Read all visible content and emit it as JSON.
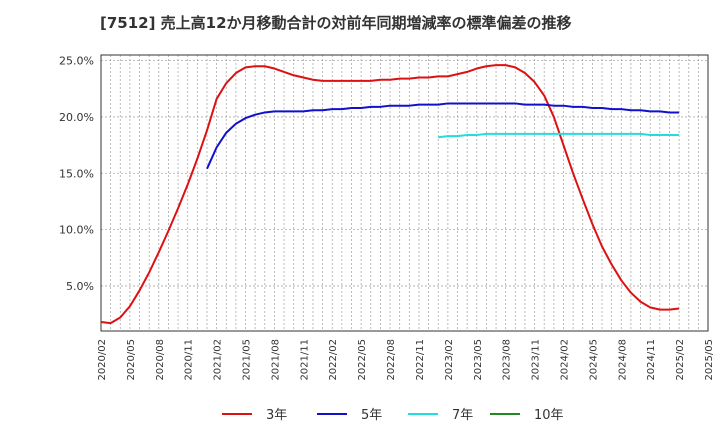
{
  "chart_data": {
    "type": "line",
    "title": "[7512]  売上高12か月移動合計の対前年同期増減率の標準偏差の推移",
    "xlabel": "",
    "ylabel": "",
    "ylim": [
      1.0,
      25.5
    ],
    "x_ticks": [
      "2020/02",
      "2020/05",
      "2020/08",
      "2020/11",
      "2021/02",
      "2021/05",
      "2021/08",
      "2021/11",
      "2022/02",
      "2022/05",
      "2022/08",
      "2022/11",
      "2023/02",
      "2023/05",
      "2023/08",
      "2023/11",
      "2024/02",
      "2024/05",
      "2024/08",
      "2024/11",
      "2025/02",
      "2025/05"
    ],
    "y_ticks": [
      5.0,
      10.0,
      15.0,
      20.0,
      25.0
    ],
    "y_tick_labels": [
      "5.0%",
      "10.0%",
      "15.0%",
      "20.0%",
      "25.0%"
    ],
    "grid": true,
    "legend_position": "bottom",
    "series": [
      {
        "name": "3年",
        "color": "#dd1111",
        "x": [
          "2020/02",
          "2020/03",
          "2020/04",
          "2020/05",
          "2020/06",
          "2020/07",
          "2020/08",
          "2020/09",
          "2020/10",
          "2020/11",
          "2020/12",
          "2021/01",
          "2021/02",
          "2021/03",
          "2021/04",
          "2021/05",
          "2021/06",
          "2021/07",
          "2021/08",
          "2021/09",
          "2021/10",
          "2021/11",
          "2021/12",
          "2022/01",
          "2022/02",
          "2022/03",
          "2022/04",
          "2022/05",
          "2022/06",
          "2022/07",
          "2022/08",
          "2022/09",
          "2022/10",
          "2022/11",
          "2022/12",
          "2023/01",
          "2023/02",
          "2023/03",
          "2023/04",
          "2023/05",
          "2023/06",
          "2023/07",
          "2023/08",
          "2023/09",
          "2023/10",
          "2023/11",
          "2023/12",
          "2024/01",
          "2024/02",
          "2024/03",
          "2024/04",
          "2024/05",
          "2024/06",
          "2024/07",
          "2024/08",
          "2024/09",
          "2024/10",
          "2024/11",
          "2024/12",
          "2025/01",
          "2025/02"
        ],
        "values": [
          1.8,
          1.7,
          2.2,
          3.2,
          4.6,
          6.2,
          8.0,
          9.9,
          11.9,
          14.0,
          16.3,
          18.8,
          21.6,
          23.0,
          23.9,
          24.4,
          24.5,
          24.5,
          24.3,
          24.0,
          23.7,
          23.5,
          23.3,
          23.2,
          23.2,
          23.2,
          23.2,
          23.2,
          23.2,
          23.3,
          23.3,
          23.4,
          23.4,
          23.5,
          23.5,
          23.6,
          23.6,
          23.8,
          24.0,
          24.3,
          24.5,
          24.6,
          24.6,
          24.4,
          23.9,
          23.1,
          21.9,
          20.0,
          17.5,
          15.0,
          12.7,
          10.5,
          8.5,
          6.9,
          5.5,
          4.4,
          3.6,
          3.1,
          2.9,
          2.9,
          3.0
        ]
      },
      {
        "name": "5年",
        "color": "#1111cc",
        "x": [
          "2021/01",
          "2021/02",
          "2021/03",
          "2021/04",
          "2021/05",
          "2021/06",
          "2021/07",
          "2021/08",
          "2021/09",
          "2021/10",
          "2021/11",
          "2021/12",
          "2022/01",
          "2022/02",
          "2022/03",
          "2022/04",
          "2022/05",
          "2022/06",
          "2022/07",
          "2022/08",
          "2022/09",
          "2022/10",
          "2022/11",
          "2022/12",
          "2023/01",
          "2023/02",
          "2023/03",
          "2023/04",
          "2023/05",
          "2023/06",
          "2023/07",
          "2023/08",
          "2023/09",
          "2023/10",
          "2023/11",
          "2023/12",
          "2024/01",
          "2024/02",
          "2024/03",
          "2024/04",
          "2024/05",
          "2024/06",
          "2024/07",
          "2024/08",
          "2024/09",
          "2024/10",
          "2024/11",
          "2024/12",
          "2025/01",
          "2025/02"
        ],
        "values": [
          15.4,
          17.3,
          18.6,
          19.4,
          19.9,
          20.2,
          20.4,
          20.5,
          20.5,
          20.5,
          20.5,
          20.6,
          20.6,
          20.7,
          20.7,
          20.8,
          20.8,
          20.9,
          20.9,
          21.0,
          21.0,
          21.0,
          21.1,
          21.1,
          21.1,
          21.2,
          21.2,
          21.2,
          21.2,
          21.2,
          21.2,
          21.2,
          21.2,
          21.1,
          21.1,
          21.1,
          21.0,
          21.0,
          20.9,
          20.9,
          20.8,
          20.8,
          20.7,
          20.7,
          20.6,
          20.6,
          20.5,
          20.5,
          20.4,
          20.4
        ]
      },
      {
        "name": "7年",
        "color": "#22dddd",
        "x": [
          "2023/01",
          "2023/02",
          "2023/03",
          "2023/04",
          "2023/05",
          "2023/06",
          "2023/07",
          "2023/08",
          "2023/09",
          "2023/10",
          "2023/11",
          "2023/12",
          "2024/01",
          "2024/02",
          "2024/03",
          "2024/04",
          "2024/05",
          "2024/06",
          "2024/07",
          "2024/08",
          "2024/09",
          "2024/10",
          "2024/11",
          "2024/12",
          "2025/01",
          "2025/02"
        ],
        "values": [
          18.2,
          18.3,
          18.3,
          18.4,
          18.4,
          18.5,
          18.5,
          18.5,
          18.5,
          18.5,
          18.5,
          18.5,
          18.5,
          18.5,
          18.5,
          18.5,
          18.5,
          18.5,
          18.5,
          18.5,
          18.5,
          18.5,
          18.4,
          18.4,
          18.4,
          18.4
        ]
      },
      {
        "name": "10年",
        "color": "#228822",
        "x": [],
        "values": []
      }
    ]
  }
}
